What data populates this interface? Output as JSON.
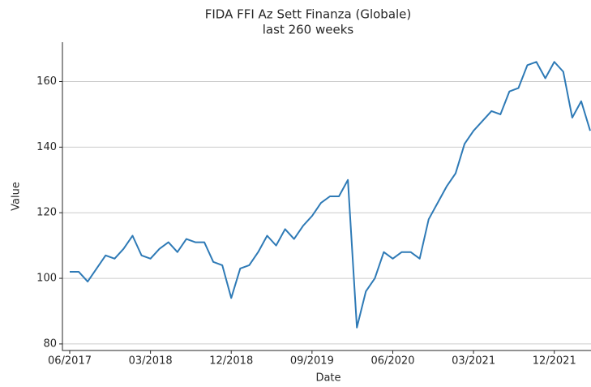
{
  "chart_data": {
    "type": "line",
    "title": "FIDA FFI Az Sett Finanza (Globale)",
    "subtitle": "last 260 weeks",
    "x_label": "Date",
    "y_label": "Value",
    "x": [
      "2017-06",
      "2017-07",
      "2017-08",
      "2017-09",
      "2017-10",
      "2017-11",
      "2017-12",
      "2018-01",
      "2018-02",
      "2018-03",
      "2018-04",
      "2018-05",
      "2018-06",
      "2018-07",
      "2018-08",
      "2018-09",
      "2018-10",
      "2018-11",
      "2018-12",
      "2019-01",
      "2019-02",
      "2019-03",
      "2019-04",
      "2019-05",
      "2019-06",
      "2019-07",
      "2019-08",
      "2019-09",
      "2019-10",
      "2019-11",
      "2019-12",
      "2020-01",
      "2020-02",
      "2020-03",
      "2020-04",
      "2020-05",
      "2020-06",
      "2020-07",
      "2020-08",
      "2020-09",
      "2020-10",
      "2020-11",
      "2020-12",
      "2021-01",
      "2021-02",
      "2021-03",
      "2021-04",
      "2021-05",
      "2021-06",
      "2021-07",
      "2021-08",
      "2021-09",
      "2021-10",
      "2021-11",
      "2021-12",
      "2022-01",
      "2022-02",
      "2022-03",
      "2022-04"
    ],
    "series": [
      {
        "name": "Value",
        "color": "#2e7ab6",
        "values": [
          102,
          102,
          99,
          103,
          107,
          106,
          109,
          113,
          107,
          106,
          109,
          111,
          108,
          112,
          111,
          111,
          105,
          104,
          94,
          103,
          104,
          108,
          113,
          110,
          115,
          112,
          116,
          119,
          123,
          125,
          125,
          130,
          85,
          96,
          100,
          108,
          106,
          108,
          108,
          106,
          118,
          123,
          128,
          132,
          141,
          145,
          148,
          151,
          150,
          157,
          158,
          165,
          166,
          161,
          166,
          163,
          149,
          154,
          145
        ]
      }
    ],
    "xlim": [
      "2017-06",
      "2022-04"
    ],
    "xticks": [
      {
        "value": "2017-06",
        "label": "06/2017"
      },
      {
        "value": "2018-03",
        "label": "03/2018"
      },
      {
        "value": "2018-12",
        "label": "12/2018"
      },
      {
        "value": "2019-09",
        "label": "09/2019"
      },
      {
        "value": "2020-06",
        "label": "06/2020"
      },
      {
        "value": "2021-03",
        "label": "03/2021"
      },
      {
        "value": "2021-12",
        "label": "12/2021"
      }
    ],
    "ylim": [
      78,
      172
    ],
    "yticks": [
      80,
      100,
      120,
      140,
      160
    ],
    "grid": true
  }
}
